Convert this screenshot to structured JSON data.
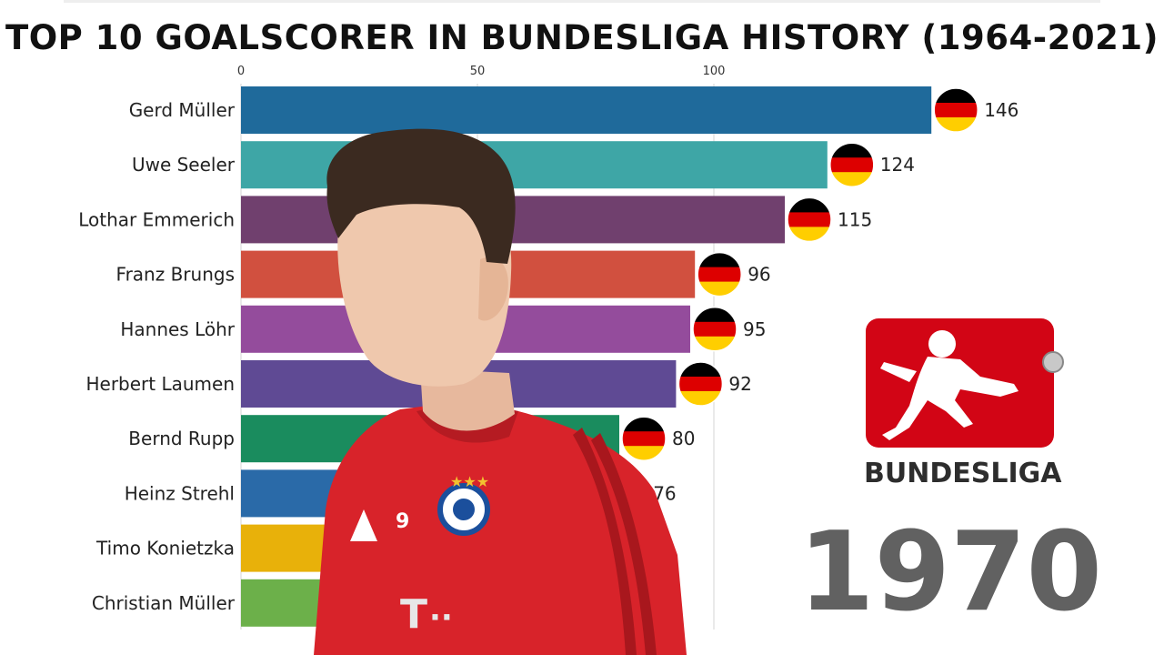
{
  "title": "TOP 10 GOALSCORER IN BUNDESLIGA HISTORY (1964-2021)",
  "year": "1970",
  "logo": {
    "text_dark": "BUNDES",
    "text_red": "LIGA",
    "red": "#d20515",
    "dark": "#2d2d2d"
  },
  "colors": {
    "flag_black": "#000000",
    "flag_red": "#dd0000",
    "flag_gold": "#ffce00"
  },
  "chart_data": {
    "type": "bar",
    "orientation": "horizontal",
    "title": "TOP 10 GOALSCORER IN BUNDESLIGA HISTORY (1964-2021)",
    "x_ticks": [
      0,
      50,
      100
    ],
    "xlim": [
      0,
      150
    ],
    "grid": true,
    "categories": [
      "Gerd Müller",
      "Uwe Seeler",
      "Lothar Emmerich",
      "Franz Brungs",
      "Hannes Löhr",
      "Herbert Laumen",
      "Bernd Rupp",
      "Heinz Strehl",
      "Timo Konietzka",
      "Christian Müller"
    ],
    "values": [
      146,
      124,
      115,
      96,
      95,
      92,
      80,
      76,
      70,
      65
    ],
    "value_labels": [
      "146",
      "124",
      "115",
      "96",
      "95",
      "92",
      "80",
      "76",
      "",
      ""
    ],
    "bar_colors": [
      "#1f6a9b",
      "#3ea6a6",
      "#70406e",
      "#d1503f",
      "#944c9c",
      "#5f4a94",
      "#1a8c5e",
      "#2a6aa8",
      "#e8b10a",
      "#6cb04a"
    ],
    "flag": "Germany"
  }
}
